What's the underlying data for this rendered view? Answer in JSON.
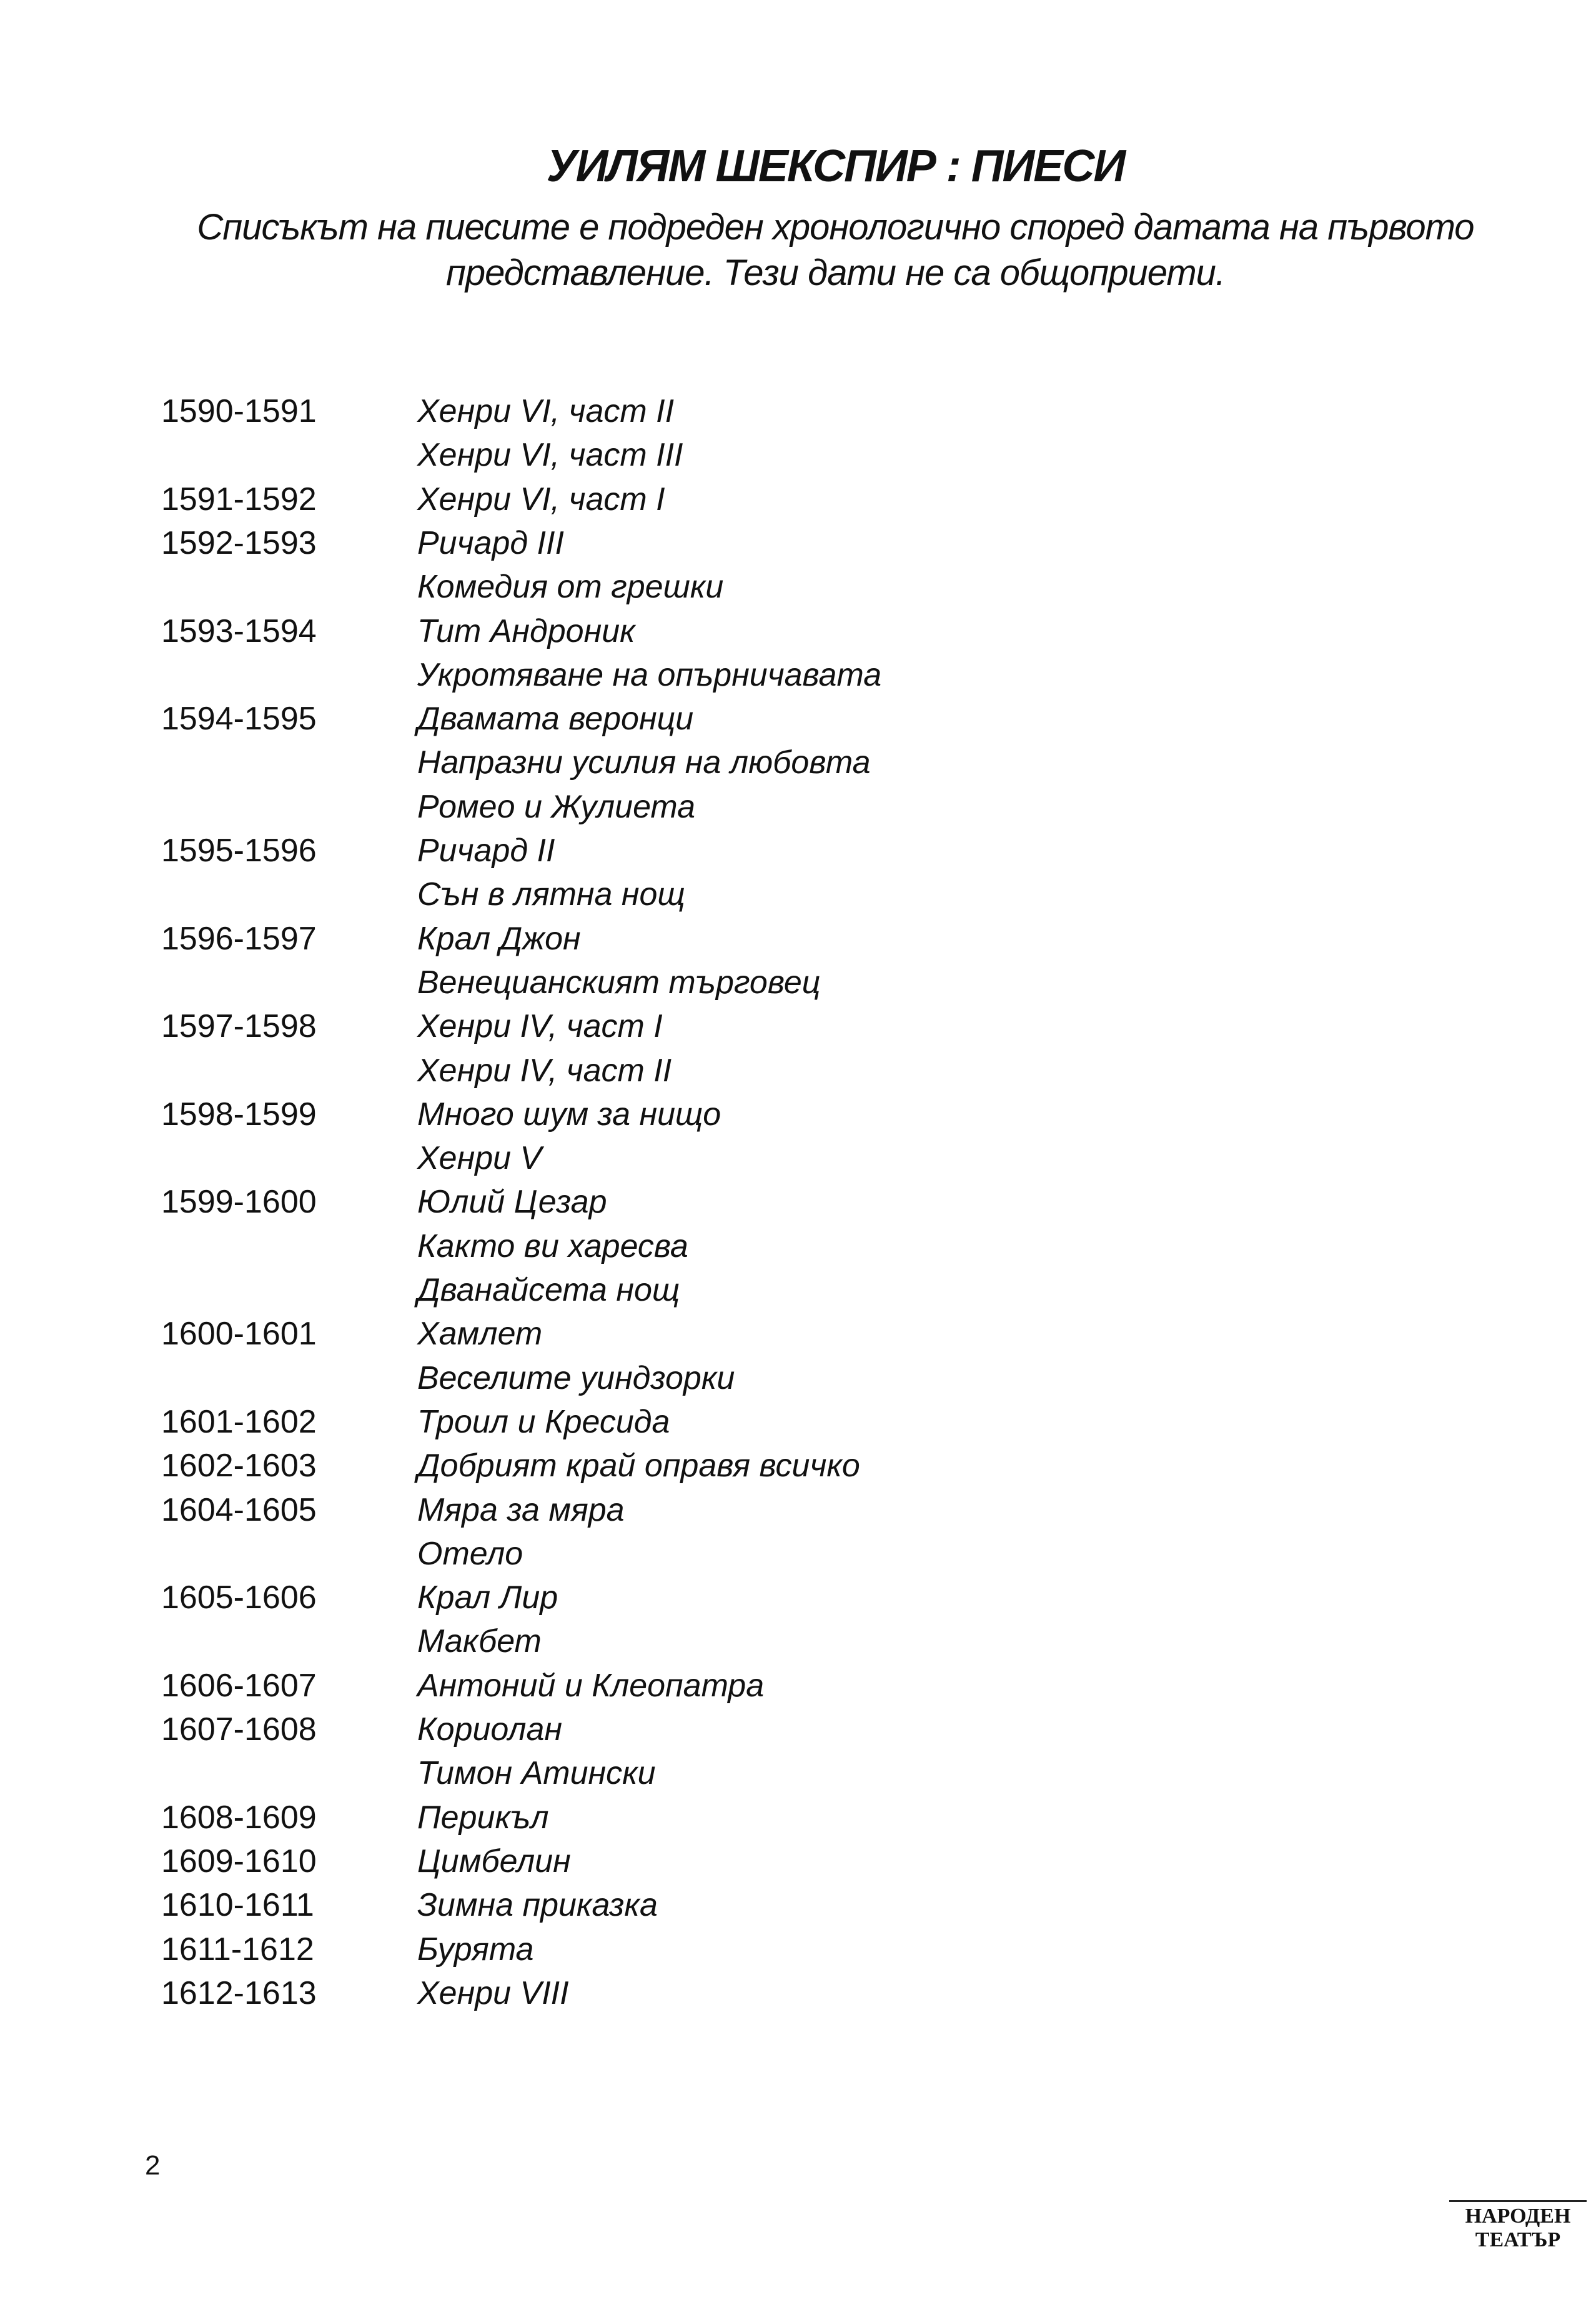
{
  "header": {
    "title": "УИЛЯМ ШЕКСПИР : ПИЕСИ",
    "subtitle_lines": [
      "Списъкът на пиесите е подреден хронологично според датата на първото",
      "представление. Тези дати не са общоприети."
    ]
  },
  "table": {
    "rows": [
      {
        "date": "1590-1591",
        "play": "Хенри VI, част II"
      },
      {
        "play": "Хенри VI, част III"
      },
      {
        "date": "1591-1592",
        "play": "Хенри VI, част I"
      },
      {
        "date": "1592-1593",
        "play": "Ричард III"
      },
      {
        "play": "Комедия от грешки"
      },
      {
        "date": "1593-1594",
        "play": "Тит Андроник"
      },
      {
        "play": "Укротяване на опърничавата"
      },
      {
        "date": "1594-1595",
        "play": "Двамата веронци"
      },
      {
        "play": "Напразни усилия на любовта"
      },
      {
        "play": "Ромео и Жулиета"
      },
      {
        "date": "1595-1596",
        "play": "Ричард II"
      },
      {
        "play": "Сън в лятна нощ"
      },
      {
        "date": "1596-1597",
        "play": "Крал Джон"
      },
      {
        "play": "Венецианският търговец"
      },
      {
        "date": "1597-1598",
        "play": "Хенри IV, част I"
      },
      {
        "play": "Хенри IV, част II"
      },
      {
        "date": "1598-1599",
        "play": "Много шум за нищо"
      },
      {
        "play": "Хенри V"
      },
      {
        "date": "1599-1600",
        "play": "Юлий Цезар"
      },
      {
        "play": "Както ви харесва"
      },
      {
        "play": "Дванайсета нощ"
      },
      {
        "date": "1600-1601",
        "play": "Хамлет"
      },
      {
        "play": "Веселите уиндзорки"
      },
      {
        "date": "1601-1602",
        "play": "Троил и Кресида"
      },
      {
        "date": "1602-1603",
        "play": "Добрият край оправя всичко"
      },
      {
        "date": "1604-1605",
        "play": "Мяра за мяра"
      },
      {
        "play": "Отело"
      },
      {
        "date": "1605-1606",
        "play": "Крал Лир"
      },
      {
        "play": "Макбет"
      },
      {
        "date": "1606-1607",
        "play": "Антоний и Клеопатра"
      },
      {
        "date": "1607-1608",
        "play": "Кориолан"
      },
      {
        "play": "Тимон Атински"
      },
      {
        "date": "1608-1609",
        "play": "Перикъл"
      },
      {
        "date": "1609-1610",
        "play": "Цимбелин"
      },
      {
        "date": "1610-1611",
        "play": "Зимна приказка"
      },
      {
        "date": "1611-1612",
        "play": "Бурята"
      },
      {
        "date": "1612-1613",
        "play": "Хенри VIII"
      }
    ]
  },
  "footer": {
    "page_number": "2",
    "logo_lines": [
      "НАРОДЕН",
      "ТЕАТЪР"
    ]
  }
}
